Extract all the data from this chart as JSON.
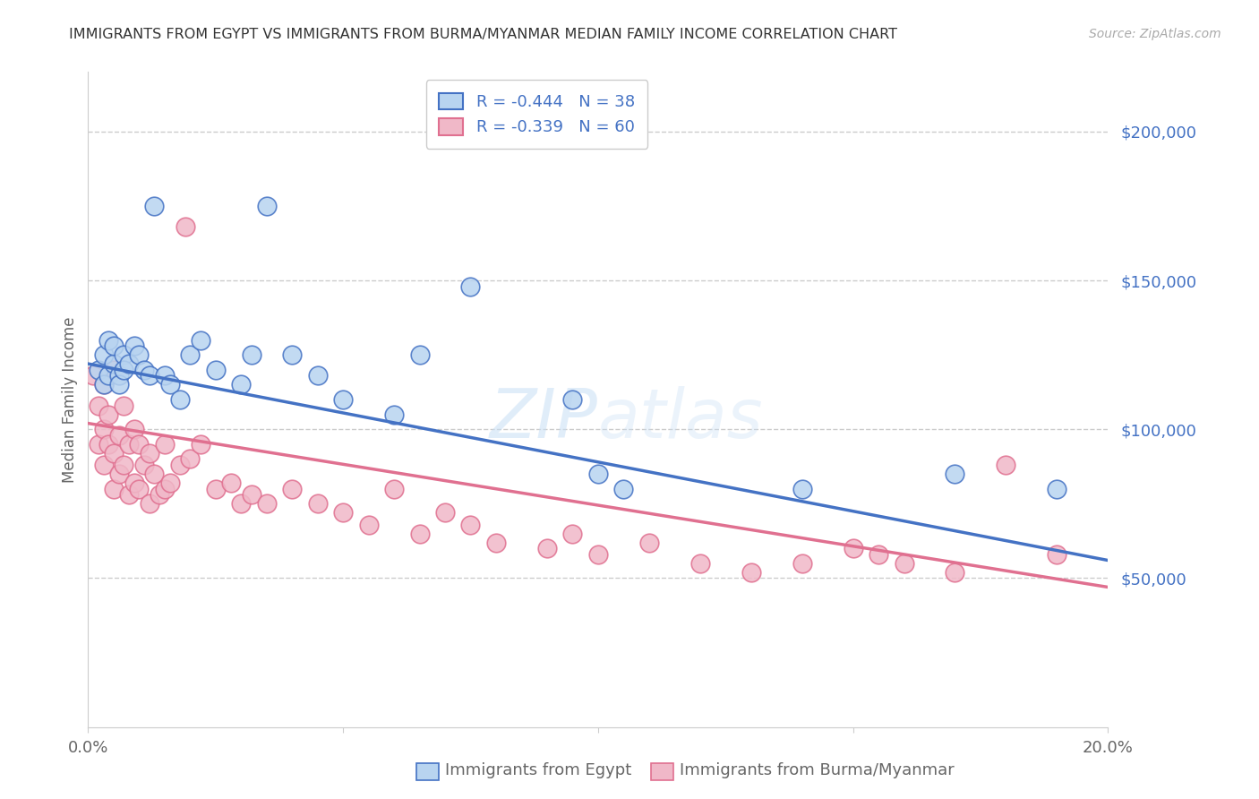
{
  "title": "IMMIGRANTS FROM EGYPT VS IMMIGRANTS FROM BURMA/MYANMAR MEDIAN FAMILY INCOME CORRELATION CHART",
  "source": "Source: ZipAtlas.com",
  "xlabel_bottom_egypt": "Immigrants from Egypt",
  "xlabel_bottom_burma": "Immigrants from Burma/Myanmar",
  "ylabel": "Median Family Income",
  "xlim": [
    0.0,
    0.2
  ],
  "ylim": [
    0,
    220000
  ],
  "yticks": [
    50000,
    100000,
    150000,
    200000
  ],
  "ytick_labels": [
    "$50,000",
    "$100,000",
    "$150,000",
    "$200,000"
  ],
  "egypt_color": "#b8d4f0",
  "burma_color": "#f0b8c8",
  "egypt_line_color": "#4472c4",
  "burma_line_color": "#e07090",
  "egypt_R": -0.444,
  "egypt_N": 38,
  "burma_R": -0.339,
  "burma_N": 60,
  "egypt_trend_x0": 0.0,
  "egypt_trend_y0": 122000,
  "egypt_trend_x1": 0.2,
  "egypt_trend_y1": 56000,
  "burma_trend_x0": 0.0,
  "burma_trend_y0": 102000,
  "burma_trend_x1": 0.2,
  "burma_trend_y1": 47000,
  "egypt_x": [
    0.002,
    0.003,
    0.003,
    0.004,
    0.004,
    0.005,
    0.005,
    0.006,
    0.006,
    0.007,
    0.007,
    0.008,
    0.009,
    0.01,
    0.011,
    0.012,
    0.013,
    0.015,
    0.016,
    0.018,
    0.02,
    0.022,
    0.025,
    0.03,
    0.032,
    0.035,
    0.04,
    0.045,
    0.05,
    0.06,
    0.065,
    0.075,
    0.095,
    0.1,
    0.105,
    0.14,
    0.17,
    0.19
  ],
  "egypt_y": [
    120000,
    125000,
    115000,
    130000,
    118000,
    122000,
    128000,
    118000,
    115000,
    125000,
    120000,
    122000,
    128000,
    125000,
    120000,
    118000,
    175000,
    118000,
    115000,
    110000,
    125000,
    130000,
    120000,
    115000,
    125000,
    175000,
    125000,
    118000,
    110000,
    105000,
    125000,
    148000,
    110000,
    85000,
    80000,
    80000,
    85000,
    80000
  ],
  "burma_x": [
    0.001,
    0.002,
    0.002,
    0.003,
    0.003,
    0.003,
    0.004,
    0.004,
    0.005,
    0.005,
    0.005,
    0.006,
    0.006,
    0.007,
    0.007,
    0.008,
    0.008,
    0.009,
    0.009,
    0.01,
    0.01,
    0.011,
    0.012,
    0.012,
    0.013,
    0.014,
    0.015,
    0.015,
    0.016,
    0.018,
    0.019,
    0.02,
    0.022,
    0.025,
    0.028,
    0.03,
    0.032,
    0.035,
    0.04,
    0.045,
    0.05,
    0.055,
    0.06,
    0.065,
    0.07,
    0.075,
    0.08,
    0.09,
    0.095,
    0.1,
    0.11,
    0.12,
    0.13,
    0.14,
    0.15,
    0.155,
    0.16,
    0.17,
    0.18,
    0.19
  ],
  "burma_y": [
    118000,
    108000,
    95000,
    115000,
    100000,
    88000,
    105000,
    95000,
    120000,
    92000,
    80000,
    98000,
    85000,
    108000,
    88000,
    95000,
    78000,
    100000,
    82000,
    95000,
    80000,
    88000,
    92000,
    75000,
    85000,
    78000,
    95000,
    80000,
    82000,
    88000,
    168000,
    90000,
    95000,
    80000,
    82000,
    75000,
    78000,
    75000,
    80000,
    75000,
    72000,
    68000,
    80000,
    65000,
    72000,
    68000,
    62000,
    60000,
    65000,
    58000,
    62000,
    55000,
    52000,
    55000,
    60000,
    58000,
    55000,
    52000,
    88000,
    58000
  ]
}
